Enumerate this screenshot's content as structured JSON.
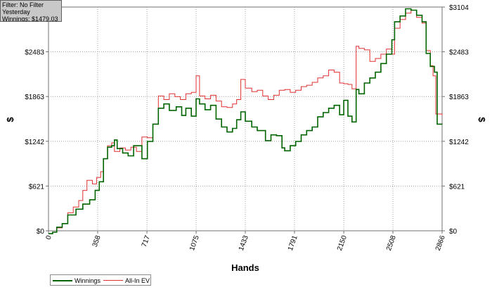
{
  "info_box": {
    "filter": "Filter: No Filter",
    "period": "Yesterday",
    "winnings": "Winnings: $1479.03"
  },
  "colors": {
    "winnings": "#006400",
    "all_in_ev": "#e03030",
    "grid": "#a0a0a0"
  },
  "chart_data": {
    "type": "line",
    "xlabel": "Hands",
    "ylabel": "$",
    "xlim": [
      0,
      2866
    ],
    "ylim": [
      0,
      3104
    ],
    "x_ticks": [
      "0",
      "358",
      "717",
      "1075",
      "1433",
      "1791",
      "2150",
      "2508",
      "2866"
    ],
    "y_ticks": [
      "$0",
      "$621",
      "$1242",
      "$1863",
      "$2483",
      "$3104"
    ],
    "grid": true,
    "legend_position": "bottom-left",
    "series": [
      {
        "name": "Winnings",
        "points": [
          [
            0,
            -40
          ],
          [
            30,
            -20
          ],
          [
            60,
            50
          ],
          [
            100,
            100
          ],
          [
            140,
            220
          ],
          [
            200,
            300
          ],
          [
            250,
            370
          ],
          [
            300,
            430
          ],
          [
            340,
            560
          ],
          [
            370,
            680
          ],
          [
            400,
            1000
          ],
          [
            430,
            1160
          ],
          [
            460,
            1180
          ],
          [
            480,
            1260
          ],
          [
            500,
            1140
          ],
          [
            540,
            1080
          ],
          [
            580,
            1040
          ],
          [
            620,
            1180
          ],
          [
            680,
            1000
          ],
          [
            720,
            1240
          ],
          [
            760,
            1480
          ],
          [
            800,
            1700
          ],
          [
            840,
            1760
          ],
          [
            880,
            1670
          ],
          [
            930,
            1720
          ],
          [
            970,
            1600
          ],
          [
            1000,
            1700
          ],
          [
            1040,
            1590
          ],
          [
            1075,
            1830
          ],
          [
            1100,
            1760
          ],
          [
            1140,
            1680
          ],
          [
            1180,
            1740
          ],
          [
            1220,
            1550
          ],
          [
            1260,
            1440
          ],
          [
            1300,
            1370
          ],
          [
            1340,
            1420
          ],
          [
            1370,
            1540
          ],
          [
            1400,
            1650
          ],
          [
            1433,
            1520
          ],
          [
            1480,
            1440
          ],
          [
            1520,
            1390
          ],
          [
            1580,
            1250
          ],
          [
            1620,
            1330
          ],
          [
            1660,
            1320
          ],
          [
            1700,
            1150
          ],
          [
            1720,
            1110
          ],
          [
            1760,
            1180
          ],
          [
            1800,
            1240
          ],
          [
            1840,
            1330
          ],
          [
            1880,
            1390
          ],
          [
            1920,
            1440
          ],
          [
            1960,
            1580
          ],
          [
            2000,
            1640
          ],
          [
            2040,
            1700
          ],
          [
            2080,
            1740
          ],
          [
            2120,
            1610
          ],
          [
            2150,
            1810
          ],
          [
            2180,
            1590
          ],
          [
            2210,
            1510
          ],
          [
            2240,
            1960
          ],
          [
            2260,
            1900
          ],
          [
            2300,
            2050
          ],
          [
            2340,
            2120
          ],
          [
            2380,
            2200
          ],
          [
            2420,
            2320
          ],
          [
            2460,
            2450
          ],
          [
            2500,
            2650
          ],
          [
            2520,
            2900
          ],
          [
            2560,
            2980
          ],
          [
            2600,
            3080
          ],
          [
            2640,
            3060
          ],
          [
            2680,
            2990
          ],
          [
            2720,
            2900
          ],
          [
            2750,
            2460
          ],
          [
            2780,
            2280
          ],
          [
            2810,
            2200
          ],
          [
            2830,
            1480
          ],
          [
            2866,
            1479
          ]
        ]
      },
      {
        "name": "All-In EV",
        "points": [
          [
            0,
            -40
          ],
          [
            30,
            -20
          ],
          [
            60,
            40
          ],
          [
            100,
            100
          ],
          [
            140,
            250
          ],
          [
            180,
            330
          ],
          [
            220,
            420
          ],
          [
            250,
            560
          ],
          [
            280,
            700
          ],
          [
            320,
            650
          ],
          [
            350,
            740
          ],
          [
            380,
            820
          ],
          [
            400,
            1000
          ],
          [
            430,
            1180
          ],
          [
            460,
            1220
          ],
          [
            480,
            1100
          ],
          [
            520,
            1150
          ],
          [
            560,
            1120
          ],
          [
            600,
            1160
          ],
          [
            640,
            1100
          ],
          [
            680,
            1300
          ],
          [
            720,
            1290
          ],
          [
            760,
            1480
          ],
          [
            800,
            1870
          ],
          [
            840,
            1820
          ],
          [
            880,
            1900
          ],
          [
            920,
            1860
          ],
          [
            960,
            1820
          ],
          [
            1000,
            1900
          ],
          [
            1040,
            1920
          ],
          [
            1075,
            2150
          ],
          [
            1100,
            1870
          ],
          [
            1140,
            1830
          ],
          [
            1180,
            1880
          ],
          [
            1220,
            1800
          ],
          [
            1260,
            1720
          ],
          [
            1300,
            1710
          ],
          [
            1340,
            1760
          ],
          [
            1370,
            1820
          ],
          [
            1400,
            2100
          ],
          [
            1433,
            1980
          ],
          [
            1480,
            1930
          ],
          [
            1520,
            1950
          ],
          [
            1560,
            1870
          ],
          [
            1600,
            1820
          ],
          [
            1640,
            1880
          ],
          [
            1680,
            1950
          ],
          [
            1720,
            1960
          ],
          [
            1760,
            1920
          ],
          [
            1800,
            1950
          ],
          [
            1840,
            2000
          ],
          [
            1880,
            2020
          ],
          [
            1920,
            2060
          ],
          [
            1960,
            2120
          ],
          [
            2000,
            2150
          ],
          [
            2040,
            2230
          ],
          [
            2080,
            2200
          ],
          [
            2120,
            2050
          ],
          [
            2150,
            2040
          ],
          [
            2180,
            2030
          ],
          [
            2210,
            1970
          ],
          [
            2240,
            2560
          ],
          [
            2260,
            2530
          ],
          [
            2300,
            2510
          ],
          [
            2340,
            2350
          ],
          [
            2380,
            2390
          ],
          [
            2420,
            2450
          ],
          [
            2460,
            2520
          ],
          [
            2500,
            2450
          ],
          [
            2520,
            2810
          ],
          [
            2560,
            2930
          ],
          [
            2600,
            3020
          ],
          [
            2640,
            3060
          ],
          [
            2680,
            2960
          ],
          [
            2720,
            2880
          ],
          [
            2750,
            2500
          ],
          [
            2780,
            2290
          ],
          [
            2800,
            2150
          ],
          [
            2820,
            1620
          ],
          [
            2866,
            1600
          ]
        ]
      }
    ]
  }
}
